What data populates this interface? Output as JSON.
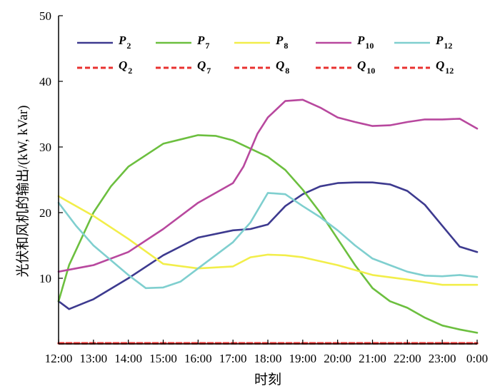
{
  "chart_data": {
    "type": "line",
    "title": "",
    "xlabel": "时刻",
    "ylabel": "光伏和风机的输出/(kW, kVar)",
    "xlim": [
      12,
      24
    ],
    "ylim": [
      0,
      50
    ],
    "x_tick_values": [
      12,
      13,
      14,
      15,
      16,
      17,
      18,
      19,
      20,
      21,
      22,
      23,
      24
    ],
    "x_tick_labels": [
      "12:00",
      "13:00",
      "14:00",
      "15:00",
      "16:00",
      "17:00",
      "18:00",
      "19:00",
      "20:00",
      "21:00",
      "22:00",
      "23:00",
      "0:00"
    ],
    "y_tick_values": [
      10,
      20,
      30,
      40,
      50
    ],
    "y_tick_labels": [
      "10",
      "20",
      "30",
      "40",
      "50"
    ],
    "grid": false,
    "legend_position": "top",
    "series": [
      {
        "name": "P",
        "subscript": "2",
        "color": "#3d3a8f",
        "style": "solid",
        "x": [
          12,
          12.3,
          13,
          14,
          15,
          16,
          17,
          17.5,
          18,
          18.5,
          19,
          19.5,
          20,
          20.5,
          21,
          21.5,
          22,
          22.5,
          23,
          23.5,
          24
        ],
        "y": [
          6.5,
          5.3,
          6.8,
          10,
          13.5,
          16.2,
          17.3,
          17.5,
          18.2,
          21,
          22.8,
          24,
          24.5,
          24.6,
          24.6,
          24.3,
          23.3,
          21.2,
          18,
          14.8,
          14
        ]
      },
      {
        "name": "P",
        "subscript": "7",
        "color": "#6cbf3f",
        "style": "solid",
        "x": [
          12,
          12.3,
          13,
          13.5,
          14,
          15,
          16,
          16.5,
          17,
          18,
          18.5,
          19,
          19.5,
          20,
          20.5,
          21,
          21.5,
          22,
          22.5,
          23,
          23.5,
          24
        ],
        "y": [
          6.5,
          12,
          20,
          24,
          27,
          30.5,
          31.8,
          31.7,
          31,
          28.5,
          26.5,
          23.5,
          20,
          16,
          12,
          8.5,
          6.5,
          5.5,
          4,
          2.8,
          2.2,
          1.7
        ]
      },
      {
        "name": "P",
        "subscript": "8",
        "color": "#f2ee4a",
        "style": "solid",
        "x": [
          12,
          13,
          14,
          15,
          16,
          17,
          17.5,
          18,
          18.5,
          19,
          20,
          21,
          22,
          23,
          24
        ],
        "y": [
          22.5,
          19.5,
          16,
          12.2,
          11.5,
          11.8,
          13.2,
          13.6,
          13.5,
          13.2,
          12,
          10.5,
          9.8,
          9,
          9
        ]
      },
      {
        "name": "P",
        "subscript": "10",
        "color": "#b8489e",
        "style": "solid",
        "x": [
          12,
          13,
          14,
          15,
          16,
          17,
          17.3,
          17.7,
          18,
          18.5,
          19,
          19.5,
          20,
          20.5,
          21,
          21.5,
          22,
          22.5,
          23,
          23.5,
          24
        ],
        "y": [
          11,
          12,
          14,
          17.5,
          21.5,
          24.5,
          27,
          32,
          34.5,
          37,
          37.2,
          36,
          34.5,
          33.8,
          33.2,
          33.3,
          33.8,
          34.2,
          34.2,
          34.3,
          32.8
        ]
      },
      {
        "name": "P",
        "subscript": "12",
        "color": "#7fcfcf",
        "style": "solid",
        "x": [
          12,
          12.5,
          13,
          14,
          14.5,
          15,
          15.5,
          16,
          17,
          17.5,
          18,
          18.5,
          19,
          19.5,
          20,
          20.5,
          21,
          21.5,
          22,
          22.5,
          23,
          23.5,
          24
        ],
        "y": [
          21.5,
          18,
          15,
          10.5,
          8.5,
          8.6,
          9.5,
          11.5,
          15.5,
          18.5,
          23,
          22.8,
          21,
          19.3,
          17.3,
          15,
          13,
          12,
          11,
          10.4,
          10.3,
          10.5,
          10.2
        ]
      },
      {
        "name": "Q",
        "subscript": "2",
        "color": "#e8312f",
        "style": "dashed",
        "x": [
          12,
          24
        ],
        "y": [
          0.1,
          0.1
        ]
      },
      {
        "name": "Q",
        "subscript": "7",
        "color": "#e8312f",
        "style": "dashed",
        "x": [
          12,
          24
        ],
        "y": [
          0.1,
          0.1
        ]
      },
      {
        "name": "Q",
        "subscript": "8",
        "color": "#e8312f",
        "style": "dashed",
        "x": [
          12,
          24
        ],
        "y": [
          0.1,
          0.1
        ]
      },
      {
        "name": "Q",
        "subscript": "10",
        "color": "#e8312f",
        "style": "dashed",
        "x": [
          12,
          24
        ],
        "y": [
          0.1,
          0.1
        ]
      },
      {
        "name": "Q",
        "subscript": "12",
        "color": "#e8312f",
        "style": "dashed",
        "x": [
          12,
          24
        ],
        "y": [
          0.1,
          0.1
        ]
      }
    ]
  }
}
